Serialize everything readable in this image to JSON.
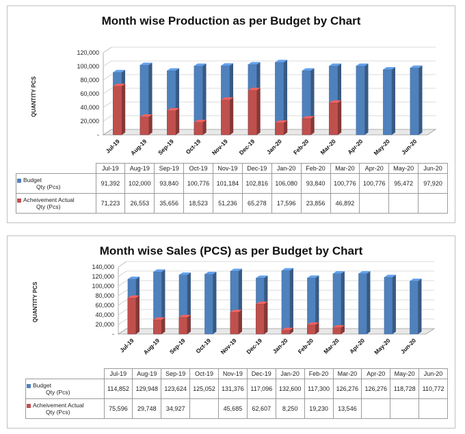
{
  "colors": {
    "budget": "#4f81bd",
    "actual": "#c0504d"
  },
  "chart_data": [
    {
      "type": "bar",
      "title": "Month wise Production as per Budget by Chart",
      "ylabel": "QUANTITY PCS",
      "ylim": [
        0,
        120000
      ],
      "yticks": [
        "-",
        "20,000",
        "40,000",
        "60,000",
        "80,000",
        "100,000",
        "120,000"
      ],
      "categories": [
        "Jul-19",
        "Aug-19",
        "Sep-19",
        "Oct-19",
        "Nov-19",
        "Dec-19",
        "Jan-20",
        "Feb-20",
        "Mar-20",
        "Apr-20",
        "May-20",
        "Jun-20"
      ],
      "series": [
        {
          "name": "Budget Qty (Pcs)",
          "values": [
            91392,
            102000,
            93840,
            100776,
            101184,
            102816,
            106080,
            93840,
            100776,
            100776,
            95472,
            97920
          ],
          "labels": [
            "91,392",
            "102,000",
            "93,840",
            "100,776",
            "101,184",
            "102,816",
            "106,080",
            "93,840",
            "100,776",
            "100,776",
            "95,472",
            "97,920"
          ]
        },
        {
          "name": "Acheivement Actual Qty (Pcs)",
          "values": [
            71223,
            26553,
            35656,
            18523,
            51236,
            65278,
            17596,
            23856,
            46892,
            null,
            null,
            null
          ],
          "labels": [
            "71,223",
            "26,553",
            "35,656",
            "18,523",
            "51,236",
            "65,278",
            "17,596",
            "23,856",
            "46,892",
            "",
            "",
            ""
          ]
        }
      ],
      "legend": "table"
    },
    {
      "type": "bar",
      "title": "Month wise Sales (PCS) as per Budget by Chart",
      "ylabel": "QUANTITY PCS",
      "ylim": [
        0,
        140000
      ],
      "yticks": [
        "-",
        "20,000",
        "40,000",
        "60,000",
        "80,000",
        "100,000",
        "120,000",
        "140,000"
      ],
      "categories": [
        "Jul-19",
        "Aug-19",
        "Sep-19",
        "Oct-19",
        "Nov-19",
        "Dec-19",
        "Jan-20",
        "Feb-20",
        "Mar-20",
        "Apr-20",
        "May-20",
        "Jun-20"
      ],
      "series": [
        {
          "name": "Budget Qty (Pcs)",
          "values": [
            114852,
            129948,
            123624,
            125052,
            131376,
            117096,
            132600,
            117300,
            126276,
            126276,
            118728,
            110772
          ],
          "labels": [
            "114,852",
            "129,948",
            "123,624",
            "125,052",
            "131,376",
            "117,096",
            "132,600",
            "117,300",
            "126,276",
            "126,276",
            "118,728",
            "110,772"
          ]
        },
        {
          "name": "Acheivement Actual Qty (Pcs)",
          "values": [
            75596,
            29748,
            34927,
            null,
            45685,
            62607,
            8250,
            19230,
            13546,
            null,
            null,
            null
          ],
          "labels": [
            "75,596",
            "29,748",
            "34,927",
            "",
            "45,685",
            "62,607",
            "8,250",
            "19,230",
            "13,546",
            "",
            "",
            ""
          ]
        }
      ],
      "legend": "table"
    }
  ],
  "tables": [
    {
      "row_budget_l1": "Budget",
      "row_budget_l2": "Qty (Pcs)",
      "row_actual_l1": "Acheivement Actual",
      "row_actual_l2": "Qty (Pcs)"
    },
    {
      "row_budget_l1": "Budget",
      "row_budget_l2": "Qty (Pcs)",
      "row_actual_l1": "Acheivement Actual",
      "row_actual_l2": "Qty (Pcs)"
    }
  ]
}
